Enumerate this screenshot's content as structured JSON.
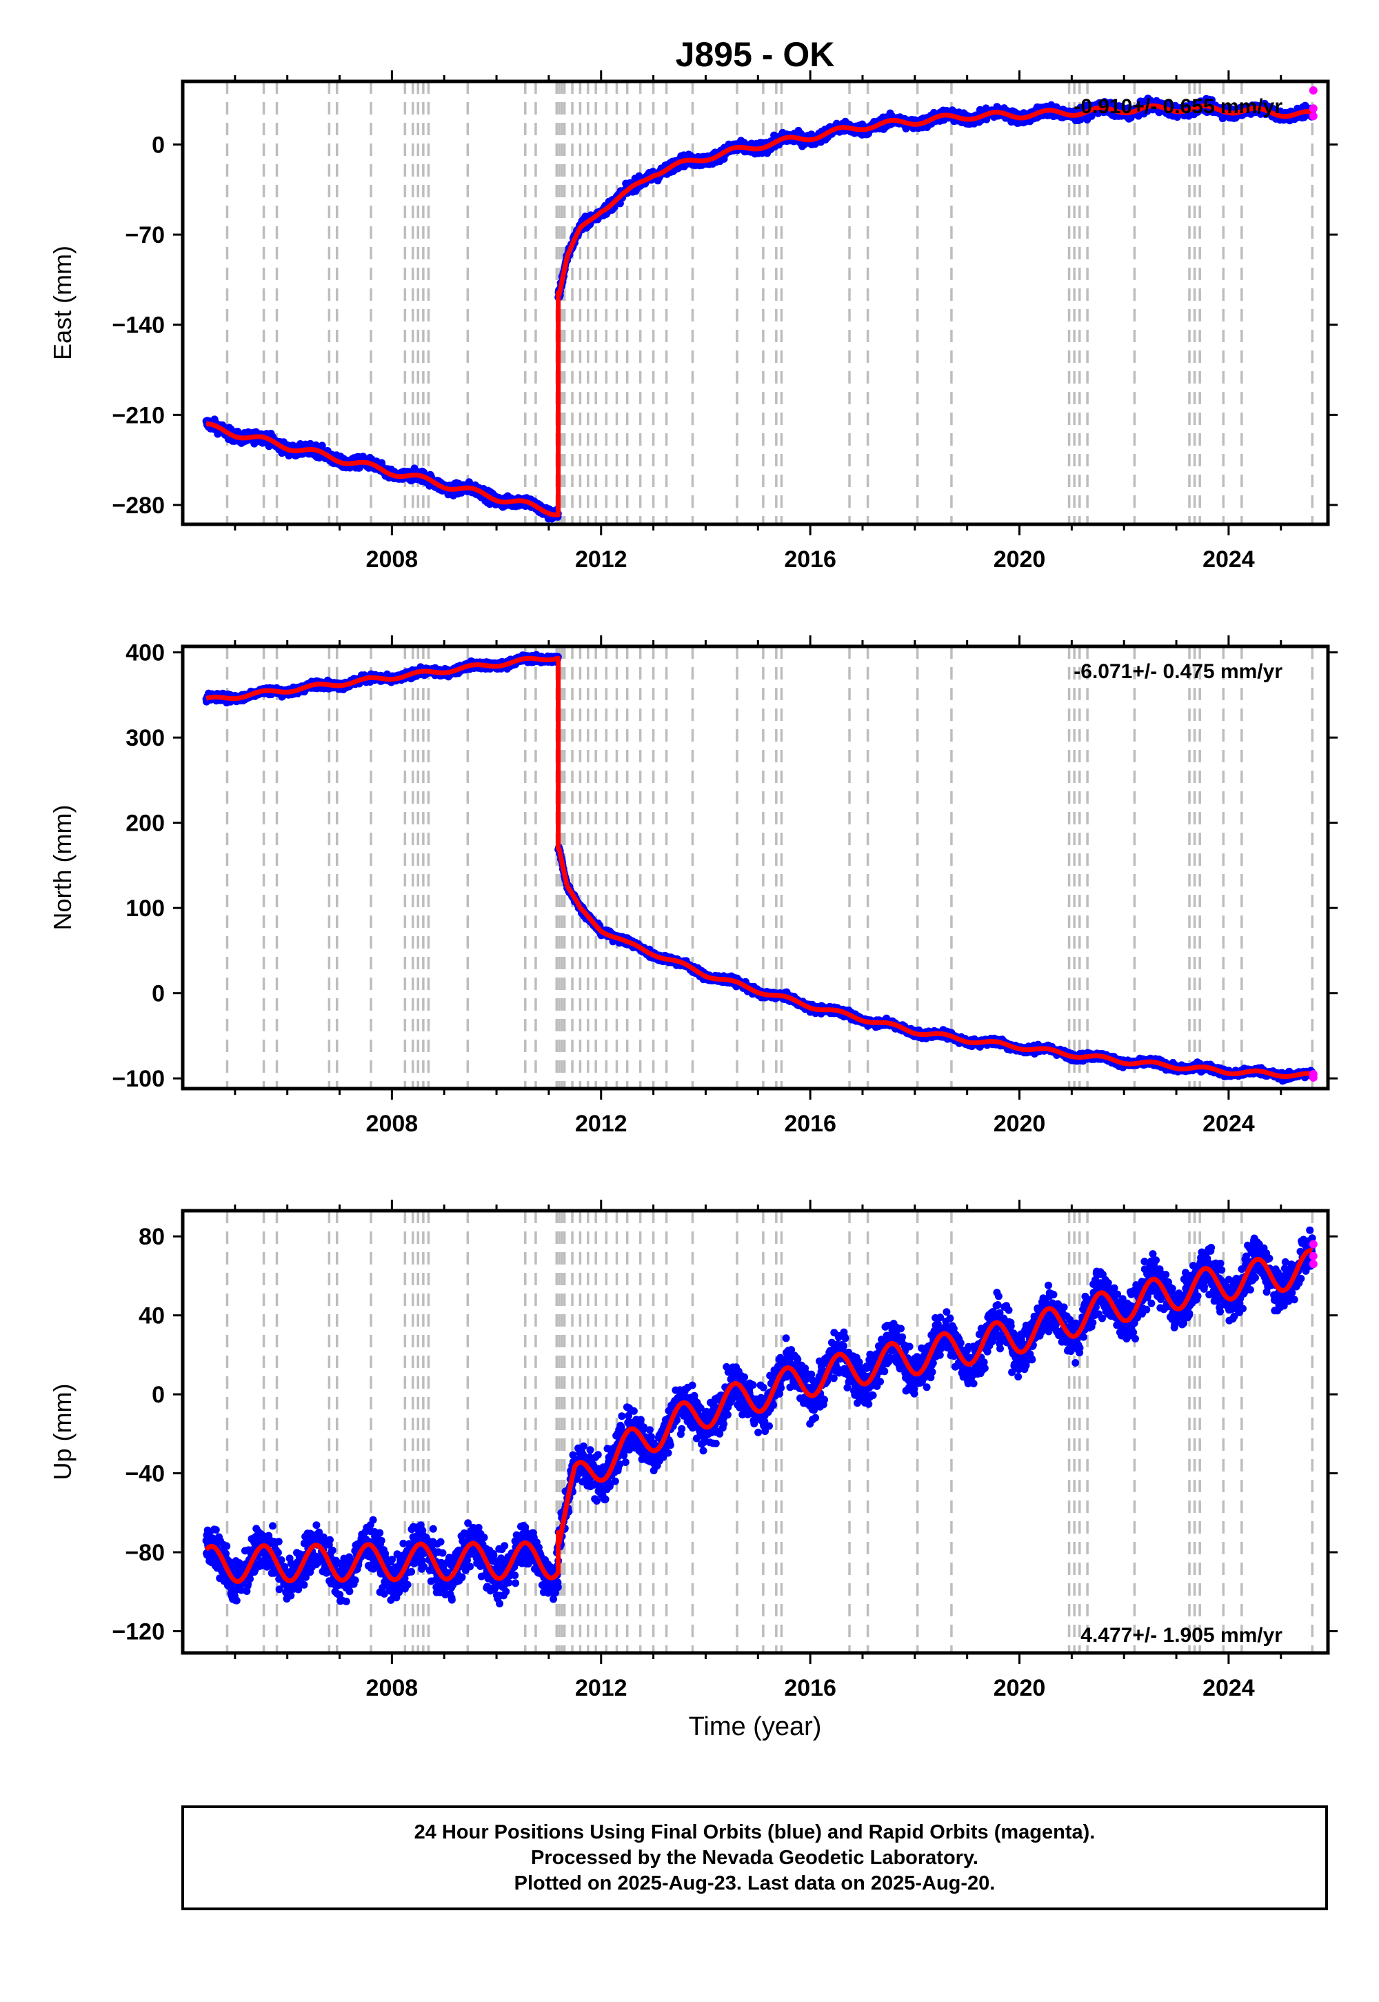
{
  "chart_data": {
    "type": "scatter",
    "title": "J895 - OK",
    "xlabel": "Time (year)",
    "xlim": [
      2004.0,
      2025.9
    ],
    "x_ticks": [
      2008,
      2012,
      2016,
      2020,
      2024
    ],
    "grid": false,
    "colors": {
      "final_orbits": "#0000ff",
      "rapid_orbits": "#ff00ff",
      "model_fit": "#ff0000",
      "equipment_change_lines": "#bdbdbd"
    },
    "equipment_change_years": [
      2004.85,
      2005.55,
      2005.8,
      2006.8,
      2006.95,
      2007.6,
      2008.25,
      2008.4,
      2008.5,
      2008.6,
      2008.7,
      2009.45,
      2010.55,
      2010.75,
      2011.15,
      2011.2,
      2011.25,
      2011.3,
      2011.45,
      2011.6,
      2011.75,
      2011.9,
      2012.1,
      2012.3,
      2012.5,
      2012.75,
      2013.0,
      2013.25,
      2013.75,
      2014.6,
      2015.1,
      2015.35,
      2015.45,
      2016.75,
      2017.1,
      2018.05,
      2018.7,
      2020.95,
      2021.05,
      2021.15,
      2021.3,
      2022.2,
      2023.25,
      2023.35,
      2023.45,
      2023.9,
      2024.25,
      2025.6
    ],
    "panels": [
      {
        "component": "east",
        "ylabel": "East (mm)",
        "ylim": [
          -295,
          49
        ],
        "y_ticks": [
          0,
          -70,
          -140,
          -210,
          -280
        ],
        "y_tick_labels": [
          "0",
          "−70",
          "−140",
          "−210",
          "−280"
        ],
        "velocity_label": "-0.910+/- 0.655 mm/yr",
        "velocity_position": "top-right",
        "step_year": 2011.18,
        "trend_before": {
          "x": [
            2004.45,
            2011.18
          ],
          "y": [
            -219,
            -286
          ]
        },
        "trend_after": {
          "x": [
            2011.2,
            2011.35,
            2011.6,
            2012.0,
            2012.5,
            2013.0,
            2014.0,
            2015.0,
            2016.0,
            2017.0,
            2018.0,
            2019.0,
            2020.0,
            2021.0,
            2022.0,
            2023.0,
            2024.0,
            2025.6
          ],
          "y": [
            -115,
            -88,
            -67,
            -50,
            -38,
            -22,
            -10,
            -1,
            6,
            14,
            18,
            22,
            23,
            25,
            27,
            28,
            27,
            23
          ]
        },
        "seasonal_amplitude": 2.5,
        "scatter_noise": 3,
        "rapid_orbit_points": {
          "x": [
            2025.62,
            2025.62,
            2025.62
          ],
          "y": [
            42,
            28,
            22
          ]
        }
      },
      {
        "component": "north",
        "ylabel": "North (mm)",
        "ylim": [
          -112,
          407
        ],
        "y_ticks": [
          400,
          300,
          200,
          100,
          0,
          -100
        ],
        "y_tick_labels": [
          "400",
          "300",
          "200",
          "100",
          "0",
          "−100"
        ],
        "velocity_label": "-6.071+/- 0.475 mm/yr",
        "velocity_position": "top-right",
        "step_year": 2011.18,
        "trend_before": {
          "x": [
            2004.45,
            2011.18
          ],
          "y": [
            344,
            395
          ]
        },
        "trend_after": {
          "x": [
            2011.2,
            2011.35,
            2011.6,
            2012.0,
            2012.5,
            2013.0,
            2014.0,
            2015.0,
            2016.0,
            2017.0,
            2018.0,
            2019.0,
            2020.0,
            2021.0,
            2022.0,
            2023.0,
            2024.0,
            2025.6
          ],
          "y": [
            170,
            125,
            98,
            75,
            58,
            47,
            22,
            3,
            -15,
            -30,
            -45,
            -55,
            -63,
            -72,
            -80,
            -86,
            -92,
            -97
          ]
        },
        "seasonal_amplitude": 2.5,
        "scatter_noise": 3,
        "rapid_orbit_points": {
          "x": [
            2025.62,
            2025.62
          ],
          "y": [
            -95,
            -99
          ]
        }
      },
      {
        "component": "up",
        "ylabel": "Up (mm)",
        "ylim": [
          -131,
          93
        ],
        "y_ticks": [
          80,
          40,
          0,
          -40,
          -80,
          -120
        ],
        "y_tick_labels": [
          "80",
          "40",
          "0",
          "−40",
          "−80",
          "−120"
        ],
        "velocity_label": "4.477+/- 1.905 mm/yr",
        "velocity_position": "bottom-right",
        "step_year": 2011.18,
        "trend_before": {
          "x": [
            2004.45,
            2011.18
          ],
          "y": [
            -86,
            -84
          ]
        },
        "trend_after": {
          "x": [
            2011.2,
            2011.5,
            2012.0,
            2013.0,
            2014.0,
            2015.0,
            2016.0,
            2017.0,
            2018.0,
            2019.0,
            2020.0,
            2021.0,
            2022.0,
            2023.0,
            2024.0,
            2025.6
          ],
          "y": [
            -70,
            -45,
            -35,
            -20,
            -8,
            0,
            8,
            14,
            19,
            24,
            30,
            38,
            46,
            52,
            57,
            64
          ]
        },
        "seasonal_amplitude": 9,
        "scatter_noise": 8,
        "rapid_orbit_points": {
          "x": [
            2025.62,
            2025.62,
            2025.62
          ],
          "y": [
            76,
            70,
            66
          ]
        }
      }
    ]
  },
  "caption": {
    "line1": "24 Hour Positions Using Final Orbits (blue) and Rapid Orbits (magenta).",
    "line2": "Processed by the Nevada Geodetic Laboratory.",
    "line3": "Plotted on 2025-Aug-23. Last data on 2025-Aug-20."
  }
}
